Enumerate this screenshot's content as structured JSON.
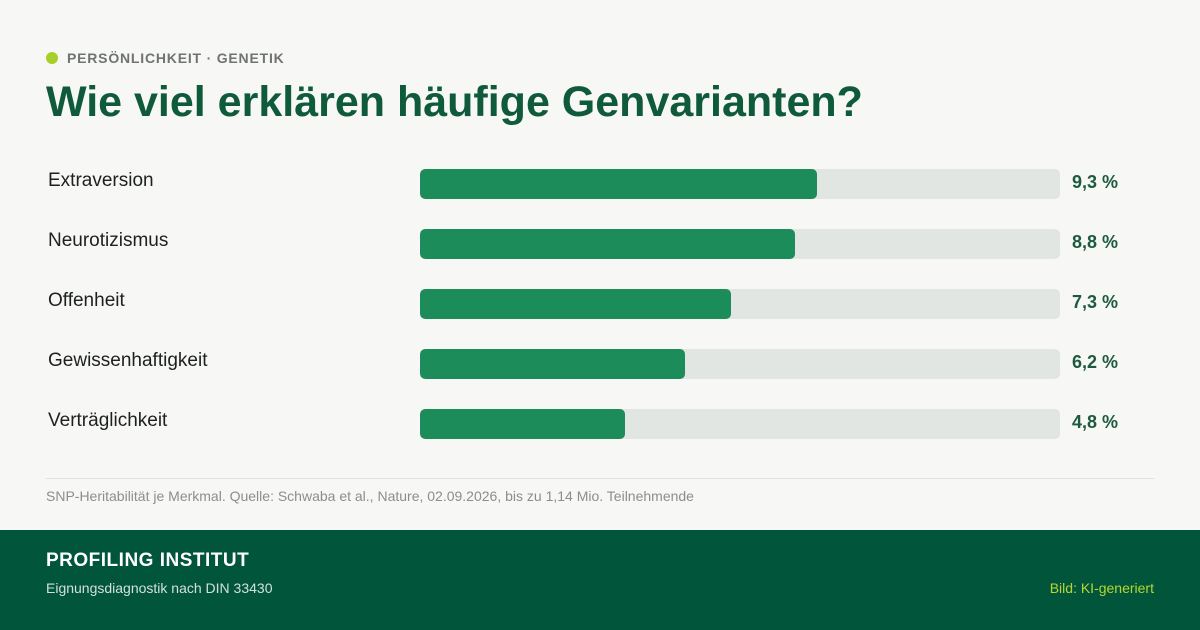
{
  "colors": {
    "background": "#f7f7f5",
    "title": "#0f5a3a",
    "bar_fill": "#1b8c5a",
    "bar_track": "#e2e6e2",
    "accent_dot": "#a6cf2a",
    "footer_bg": "#00553a",
    "credit": "#b5d633"
  },
  "header": {
    "kicker": "PERSÖNLICHKEIT · GENETIK",
    "title": "Wie viel erklären häufige Genvarianten?"
  },
  "chart_data": {
    "type": "bar",
    "orientation": "horizontal",
    "title": "Wie viel erklären häufige Genvarianten?",
    "categories": [
      "Extraversion",
      "Neurotizismus",
      "Offenheit",
      "Gewissenhaftigkeit",
      "Verträglichkeit"
    ],
    "values": [
      9.3,
      8.8,
      7.3,
      6.2,
      4.8
    ],
    "value_labels": [
      "9,3 %",
      "8,8 %",
      "7,3 %",
      "6,2 %",
      "4,8 %"
    ],
    "unit": "%",
    "xlim": [
      0,
      15
    ],
    "grid": false,
    "legend": "none"
  },
  "source": "SNP-Heritabilität je Merkmal. Quelle: Schwaba et al., Nature, 02.09.2026, bis zu 1,14 Mio. Teilnehmende",
  "footer": {
    "name": "PROFILING INSTITUT",
    "subtitle": "Eignungsdiagnostik nach DIN 33430",
    "credit": "Bild: KI-generiert"
  }
}
